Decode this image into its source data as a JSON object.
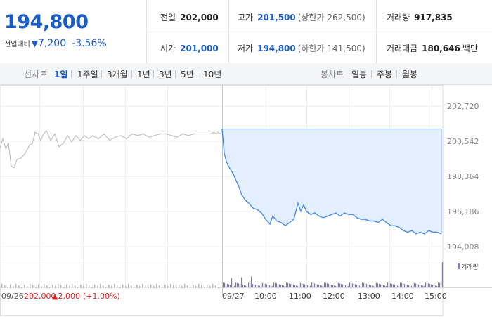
{
  "quote": {
    "price": "194,800",
    "change_label": "전일대비",
    "change_arrow": "▼",
    "change_value": "7,200",
    "change_pct": "-3.56%"
  },
  "stats": {
    "prev_close": {
      "label": "전일",
      "value": "202,000"
    },
    "open": {
      "label": "시가",
      "value": "201,000"
    },
    "high": {
      "label": "고가",
      "value": "201,500",
      "sub": "(상한가 262,500)"
    },
    "low": {
      "label": "저가",
      "value": "194,800",
      "sub": "(하한가 141,500)"
    },
    "volume": {
      "label": "거래량",
      "value": "917,835"
    },
    "amount": {
      "label": "거래대금",
      "value": "180,646",
      "unit": "백만"
    }
  },
  "line_tabs": {
    "label": "선차트",
    "items": [
      "1일",
      "1주일",
      "3개월",
      "1년",
      "3년",
      "5년",
      "10년"
    ],
    "active": "1일"
  },
  "candle_tabs": {
    "label": "봉차트",
    "items": [
      "일봉",
      "주봉",
      "월봉"
    ]
  },
  "colors": {
    "blue": "#1a5dc9",
    "line": "#4a8ee6",
    "fill": "#e3efff",
    "prev_line": "#c4c4c4",
    "up_red": "#e02020",
    "volume": "#8b6fd0"
  },
  "chart_data": {
    "type": "line",
    "y_ticks": [
      "202,720",
      "200,542",
      "198,364",
      "196,186",
      "194,008"
    ],
    "ylim": [
      194008,
      202720
    ],
    "volume_legend": "거래량",
    "prev_day": {
      "date_label": "09/26",
      "close": "202,000",
      "change": "▲2,000",
      "change_pct": "(+1.00%)",
      "x": [
        0,
        4,
        8,
        12,
        16,
        20,
        24,
        30,
        36,
        42,
        46,
        50,
        54,
        58,
        62,
        66,
        72,
        78,
        84,
        90,
        96,
        102,
        108,
        114,
        120,
        126,
        132,
        140,
        148,
        156,
        164,
        172,
        180,
        188,
        196,
        204,
        212,
        220,
        228,
        236,
        244,
        252,
        260,
        268,
        276,
        284,
        292,
        300,
        304,
        308,
        310,
        314
      ],
      "values": [
        200100,
        200700,
        200100,
        200400,
        199000,
        198900,
        199400,
        199500,
        199800,
        200300,
        200400,
        201100,
        201000,
        200600,
        201000,
        201200,
        200600,
        201000,
        200200,
        200400,
        200900,
        200500,
        200900,
        200600,
        200900,
        200700,
        200900,
        200700,
        201000,
        200600,
        200800,
        200900,
        200700,
        201000,
        200900,
        201000,
        200800,
        200900,
        201000,
        201000,
        200900,
        200800,
        201000,
        200900,
        201000,
        201000,
        201000,
        201000,
        201100,
        201000,
        201100,
        201000
      ]
    },
    "today": {
      "date_label": "09/27",
      "time_labels": [
        "10:00",
        "11:00",
        "12:00",
        "13:00",
        "14:00",
        "15:00"
      ],
      "x": [
        0,
        3,
        6,
        9,
        12,
        16,
        20,
        24,
        28,
        33,
        38,
        44,
        50,
        56,
        62,
        68,
        72,
        78,
        84,
        90,
        96,
        102,
        108,
        112,
        116,
        120,
        126,
        132,
        138,
        144,
        150,
        156,
        162,
        168,
        174,
        180,
        186,
        192,
        198,
        204,
        210,
        216,
        222,
        228,
        234,
        240,
        246,
        252,
        258,
        264,
        270,
        276,
        282,
        288,
        294,
        300,
        306,
        312
      ],
      "values": [
        201300,
        199800,
        199300,
        199000,
        198800,
        198500,
        198100,
        197700,
        197200,
        196900,
        196700,
        196400,
        196300,
        196100,
        195700,
        195400,
        195900,
        195600,
        195500,
        195300,
        195500,
        195700,
        196700,
        196200,
        196600,
        196200,
        196000,
        196100,
        195900,
        195800,
        195900,
        196000,
        196100,
        195900,
        196100,
        196000,
        196000,
        195800,
        195700,
        195700,
        195600,
        195600,
        195500,
        195700,
        195500,
        195300,
        195300,
        195200,
        195000,
        194900,
        195000,
        194800,
        194900,
        194800,
        195000,
        194900,
        194900,
        194800
      ]
    }
  }
}
